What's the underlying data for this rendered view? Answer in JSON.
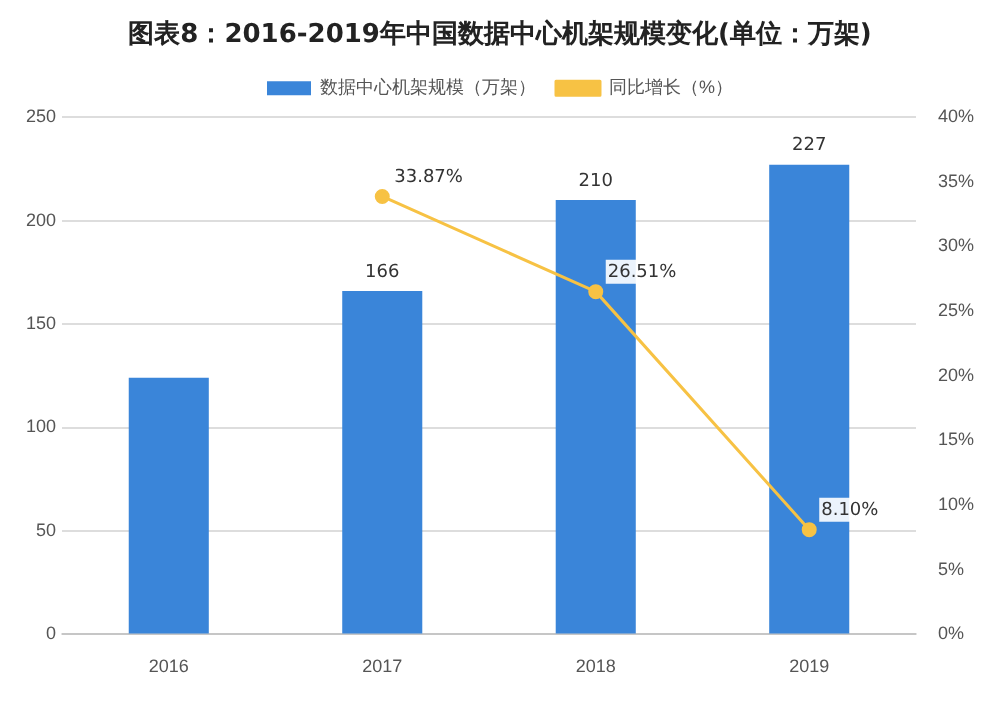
{
  "chart_data": {
    "type": "bar",
    "title": "图表8：2016-2019年中国数据中心机架规模变化(单位：万架)",
    "categories": [
      "2016",
      "2017",
      "2018",
      "2019"
    ],
    "series": [
      {
        "name": "数据中心机架规模（万架）",
        "color": "#3a85d9",
        "values": [
          124,
          166,
          210,
          227
        ],
        "value_labels": [
          null,
          "166",
          "210",
          "227"
        ]
      },
      {
        "name": "同比增长（%）",
        "type": "line",
        "axis": "y2",
        "color": "#f7c244",
        "values": [
          null,
          33.87,
          26.51,
          8.1
        ],
        "value_labels": [
          null,
          "33.87%",
          "26.51%",
          "8.10%"
        ]
      }
    ],
    "ylim": [
      0,
      250
    ],
    "yticks": [
      0,
      50,
      100,
      150,
      200,
      250
    ],
    "y2lim": [
      0,
      40
    ],
    "y2ticks": [
      {
        "value": 0,
        "label": "0%"
      },
      {
        "value": 5,
        "label": "5%"
      },
      {
        "value": 10,
        "label": "10%"
      },
      {
        "value": 15,
        "label": "15%"
      },
      {
        "value": 20,
        "label": "20%"
      },
      {
        "value": 25,
        "label": "25%"
      },
      {
        "value": 30,
        "label": "30%"
      },
      {
        "value": 35,
        "label": "35%"
      },
      {
        "value": 40,
        "label": "40%"
      }
    ],
    "grid": "y",
    "legend": "top",
    "marker": "circle"
  }
}
